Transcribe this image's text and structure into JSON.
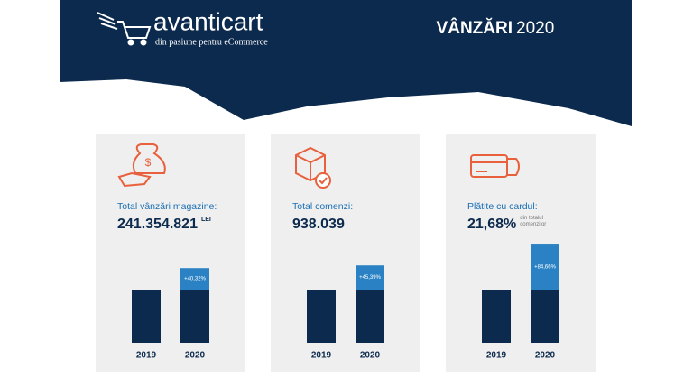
{
  "header": {
    "brand": "avanticart",
    "tagline": "din pasiune pentru eCommerce",
    "title_bold": "VÂNZĂRI",
    "title_year": "2020"
  },
  "cards": [
    {
      "label": "Total vânzări magazine:",
      "value": "241.354.821",
      "suffix": "LEI",
      "growth": {
        "value": 40.32,
        "label": "+40,32%"
      },
      "years": [
        "2019",
        "2020"
      ]
    },
    {
      "label": "Total comenzi:",
      "value": "938.039",
      "growth": {
        "value": 45.39,
        "label": "+45,39%"
      },
      "years": [
        "2019",
        "2020"
      ]
    },
    {
      "label": "Plătite cu cardul:",
      "value": "21,68%",
      "suffix": "din totalul comenzilor",
      "growth": {
        "value": 84.66,
        "label": "+84,66%"
      },
      "years": [
        "2019",
        "2020"
      ]
    }
  ]
}
